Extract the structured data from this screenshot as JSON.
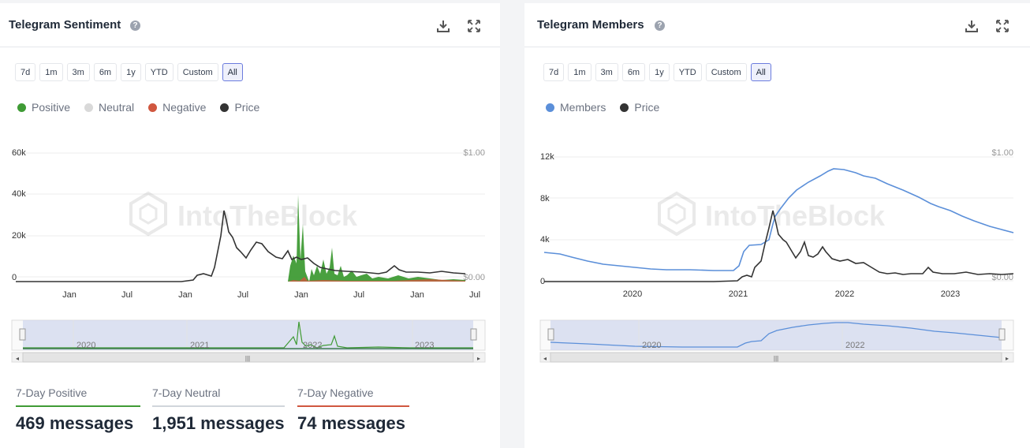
{
  "sentiment": {
    "title": "Telegram Sentiment",
    "ranges": [
      "7d",
      "1m",
      "3m",
      "6m",
      "1y",
      "YTD",
      "Custom",
      "All"
    ],
    "active_range": "All",
    "legend": [
      {
        "label": "Positive",
        "color": "#3f9b35"
      },
      {
        "label": "Neutral",
        "color": "#d9d9d9"
      },
      {
        "label": "Negative",
        "color": "#d0573f"
      },
      {
        "label": "Price",
        "color": "#333333"
      }
    ],
    "watermark": "IntoTheBlock",
    "left_axis": [
      "60k",
      "40k",
      "20k",
      "0"
    ],
    "right_axis": [
      "$1.00",
      "$0.00"
    ],
    "x_ticks": [
      "Jan",
      "Jul",
      "Jan",
      "Jul",
      "Jan",
      "Jul",
      "Jan",
      "Jul"
    ],
    "navigator_years": [
      "2020",
      "2021",
      "2022",
      "2023"
    ],
    "stats": [
      {
        "label": "7-Day Positive",
        "value": "469 messages",
        "color": "#3f9b35"
      },
      {
        "label": "7-Day Neutral",
        "value": "1,951 messages",
        "color": "#d1d5db"
      },
      {
        "label": "7-Day Negative",
        "value": "74 messages",
        "color": "#d0573f"
      }
    ]
  },
  "members": {
    "title": "Telegram Members",
    "ranges": [
      "7d",
      "1m",
      "3m",
      "6m",
      "1y",
      "YTD",
      "Custom",
      "All"
    ],
    "active_range": "All",
    "legend": [
      {
        "label": "Members",
        "color": "#5b8fd9"
      },
      {
        "label": "Price",
        "color": "#333333"
      }
    ],
    "watermark": "IntoTheBlock",
    "left_axis": [
      "12k",
      "8k",
      "4k",
      "0"
    ],
    "right_axis": [
      "$1.00",
      "$0.00"
    ],
    "x_ticks": [
      "2020",
      "2021",
      "2022",
      "2023"
    ],
    "navigator_years": [
      "2020",
      "2022"
    ]
  },
  "icons": {
    "help": "?",
    "download": "download-icon",
    "expand": "expand-icon"
  }
}
